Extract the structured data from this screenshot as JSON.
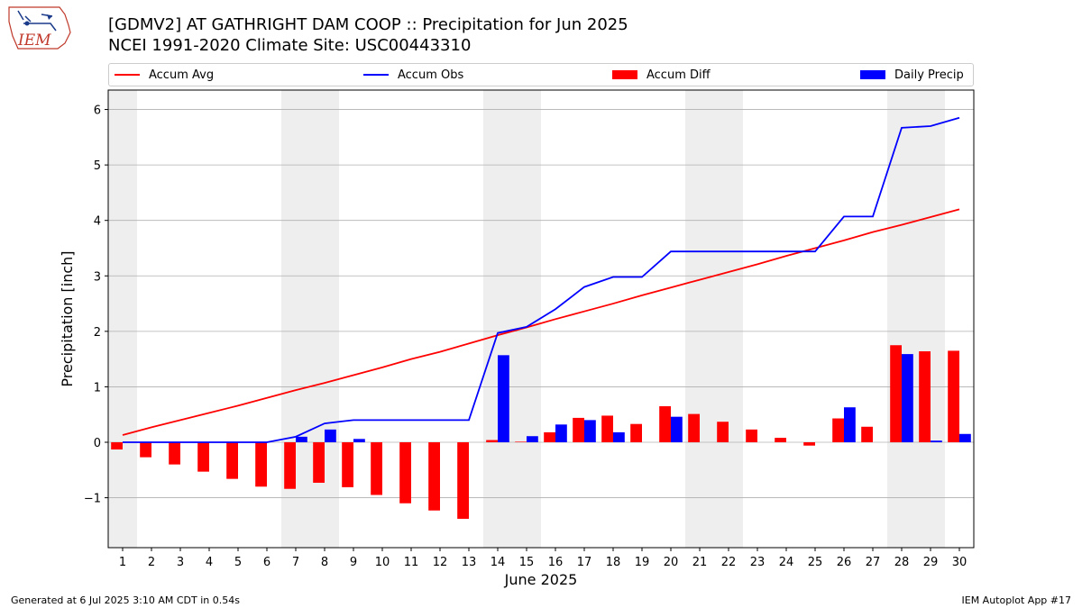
{
  "header": {
    "title_line1": "[GDMV2] AT GATHRIGHT DAM COOP :: Precipitation for Jun 2025",
    "title_line2": "NCEI 1991-2020 Climate Site: USC00443310",
    "logo_text": "IEM"
  },
  "footer": {
    "generated": "Generated at 6 Jul 2025 3:10 AM CDT in 0.54s",
    "app": "IEM Autoplot App #17"
  },
  "colors": {
    "avg": "#ff0000",
    "obs": "#0000ff",
    "diff": "#ff0000",
    "daily": "#0000ff",
    "weekend_band": "#eeeeee",
    "grid": "#b0b0b0"
  },
  "chart_data": {
    "type": "bar",
    "xlabel": "June 2025",
    "ylabel": "Precipitation [inch]",
    "ylim": [
      -1.9,
      6.35
    ],
    "xlim": [
      0.5,
      30.5
    ],
    "yticks": [
      -1,
      0,
      1,
      2,
      3,
      4,
      5,
      6
    ],
    "ytick_labels": [
      "−1",
      "0",
      "1",
      "2",
      "3",
      "4",
      "5",
      "6"
    ],
    "categories": [
      "1",
      "2",
      "3",
      "4",
      "5",
      "6",
      "7",
      "8",
      "9",
      "10",
      "11",
      "12",
      "13",
      "14",
      "15",
      "16",
      "17",
      "18",
      "19",
      "20",
      "21",
      "22",
      "23",
      "24",
      "25",
      "26",
      "27",
      "28",
      "29",
      "30"
    ],
    "grid": "y",
    "legend_position": "top",
    "weekend_bands": [
      [
        0.5,
        1.5
      ],
      [
        6.5,
        8.5
      ],
      [
        13.5,
        15.5
      ],
      [
        20.5,
        22.5
      ],
      [
        27.5,
        29.5
      ]
    ],
    "series": [
      {
        "name": "Accum Avg",
        "kind": "line",
        "values": [
          0.13,
          0.27,
          0.4,
          0.53,
          0.66,
          0.8,
          0.94,
          1.07,
          1.21,
          1.35,
          1.5,
          1.63,
          1.78,
          1.93,
          2.07,
          2.22,
          2.36,
          2.5,
          2.65,
          2.79,
          2.93,
          3.07,
          3.21,
          3.36,
          3.5,
          3.64,
          3.79,
          3.92,
          4.06,
          4.2
        ]
      },
      {
        "name": "Accum Obs",
        "kind": "line",
        "values": [
          0.0,
          0.0,
          0.0,
          0.0,
          0.0,
          0.0,
          0.1,
          0.34,
          0.4,
          0.4,
          0.4,
          0.4,
          0.4,
          1.97,
          2.08,
          2.4,
          2.8,
          2.98,
          2.98,
          3.44,
          3.44,
          3.44,
          3.44,
          3.44,
          3.44,
          4.07,
          4.07,
          5.67,
          5.7,
          5.85
        ]
      },
      {
        "name": "Accum Diff",
        "kind": "bar",
        "values": [
          -0.13,
          -0.27,
          -0.4,
          -0.53,
          -0.66,
          -0.8,
          -0.84,
          -0.73,
          -0.81,
          -0.95,
          -1.1,
          -1.23,
          -1.38,
          0.04,
          0.01,
          0.18,
          0.44,
          0.48,
          0.33,
          0.65,
          0.51,
          0.37,
          0.23,
          0.08,
          -0.06,
          0.43,
          0.28,
          1.75,
          1.64,
          1.65
        ]
      },
      {
        "name": "Daily Precip",
        "kind": "bar",
        "values": [
          0,
          0,
          0,
          0,
          0,
          0,
          0.1,
          0.23,
          0.06,
          0,
          0,
          0,
          0,
          1.57,
          0.11,
          0.32,
          0.4,
          0.18,
          0,
          0.46,
          0,
          0,
          0,
          0,
          0,
          0.63,
          0,
          1.59,
          0.03,
          0.15
        ]
      }
    ]
  }
}
